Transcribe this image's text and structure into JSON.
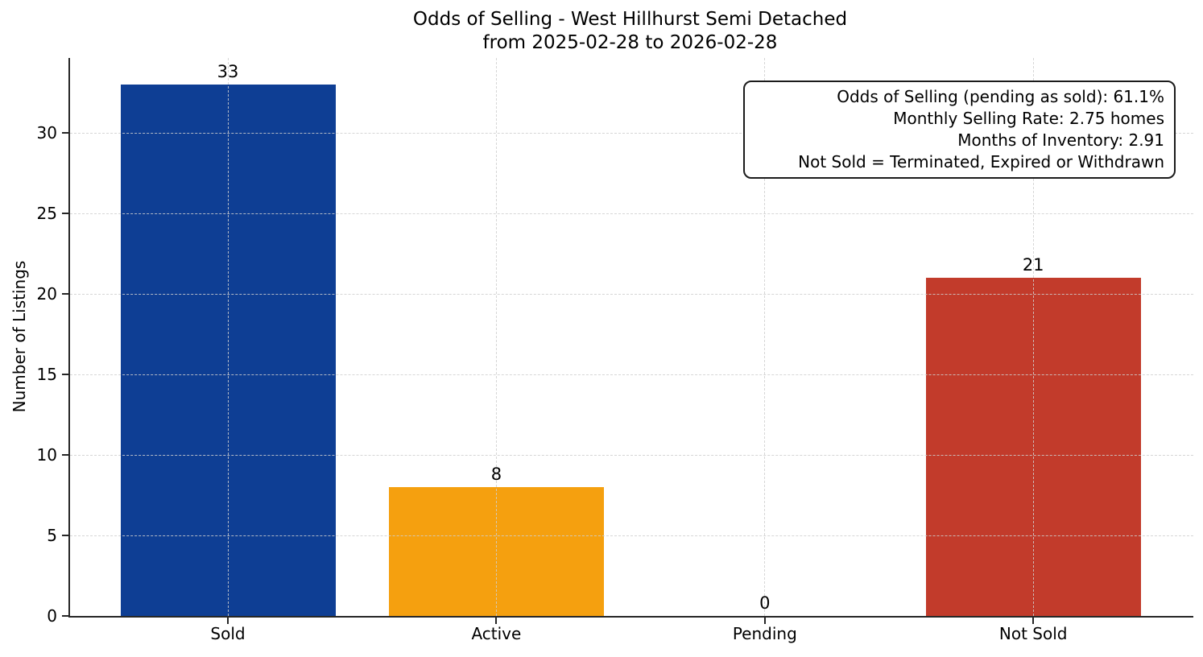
{
  "chart_data": {
    "type": "bar",
    "title": "Odds of Selling - West Hillhurst Semi Detached",
    "subtitle": "from 2025-02-28 to 2026-02-28",
    "xlabel": "",
    "ylabel": "Number of Listings",
    "categories": [
      "Sold",
      "Active",
      "Pending",
      "Not Sold"
    ],
    "values": [
      33,
      8,
      0,
      21
    ],
    "bar_colors": [
      "#0e3e94",
      "#f5a00f",
      "#808080",
      "#c23b2b"
    ],
    "yticks": [
      0,
      5,
      10,
      15,
      20,
      25,
      30
    ],
    "ylim": [
      0,
      34.65
    ],
    "grid": "dashed horizontal and vertical",
    "legend": "none",
    "annotation": {
      "position": "top-right",
      "lines": [
        "Odds of Selling (pending as sold): 61.1%",
        "Monthly Selling Rate: 2.75 homes",
        "Months of Inventory: 2.91",
        "Not Sold = Terminated, Expired or Withdrawn"
      ]
    },
    "colors": {
      "axis": "#262626",
      "grid": "#cfcfcf",
      "text": "#000000",
      "background": "#ffffff"
    }
  }
}
